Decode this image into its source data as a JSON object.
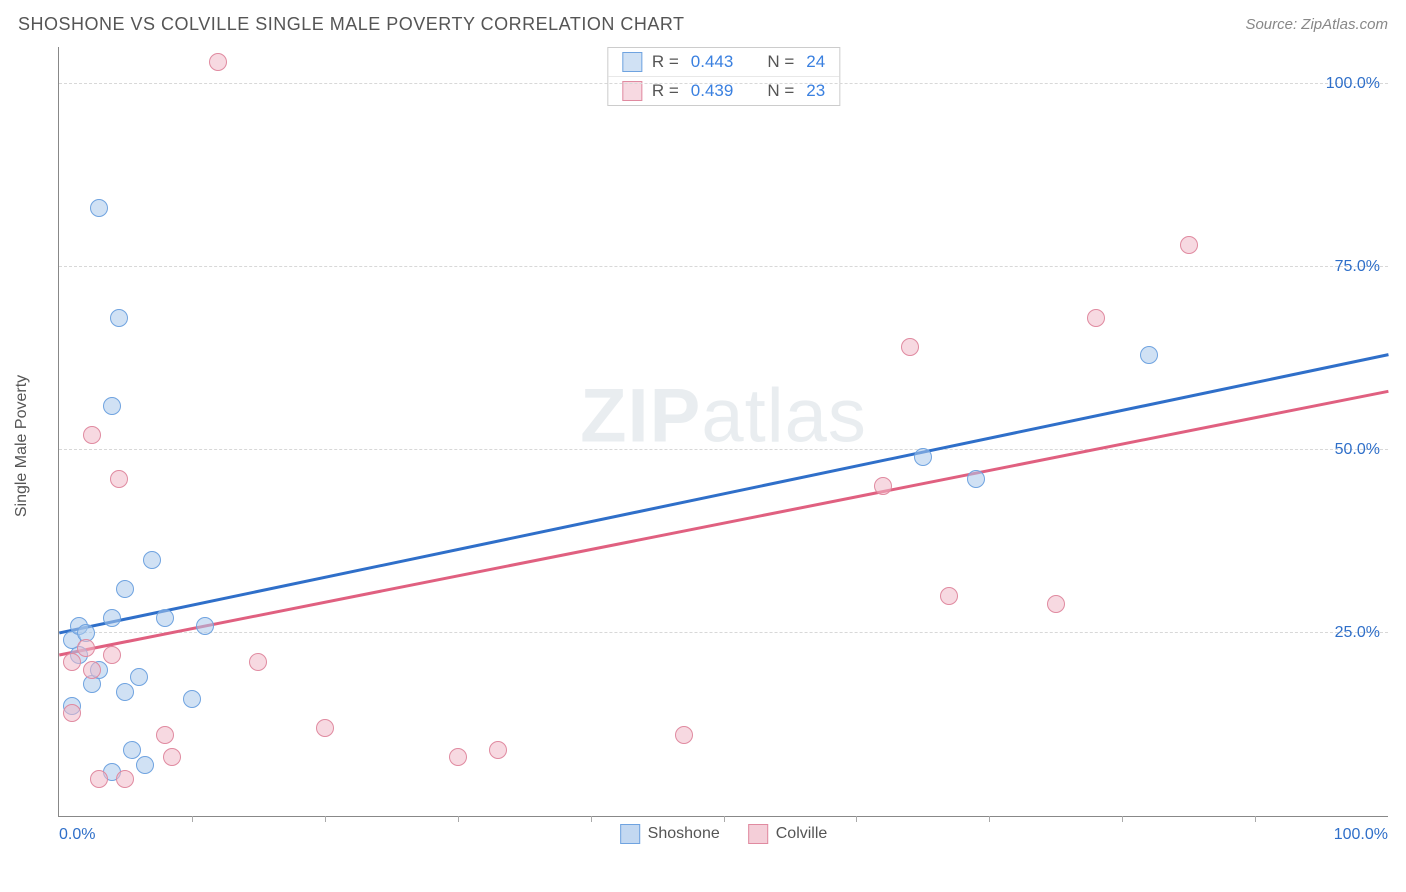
{
  "chart": {
    "type": "scatter",
    "title": "SHOSHONE VS COLVILLE SINGLE MALE POVERTY CORRELATION CHART",
    "source": "Source: ZipAtlas.com",
    "y_axis_label": "Single Male Poverty",
    "x_axis_label_min": "0.0%",
    "x_axis_label_max": "100.0%",
    "watermark_bold": "ZIP",
    "watermark_rest": "atlas",
    "xlim": [
      0,
      100
    ],
    "ylim": [
      0,
      105
    ],
    "y_ticks": [
      {
        "value": 25,
        "label": "25.0%"
      },
      {
        "value": 50,
        "label": "50.0%"
      },
      {
        "value": 75,
        "label": "75.0%"
      },
      {
        "value": 100,
        "label": "100.0%"
      }
    ],
    "x_tick_positions": [
      10,
      20,
      30,
      40,
      50,
      60,
      70,
      80,
      90
    ],
    "background_color": "#ffffff",
    "grid_color": "#d8d8d8",
    "axis_color": "#888888",
    "tick_label_color": "#2f6fc9",
    "title_color": "#555555",
    "title_fontsize": 18,
    "label_fontsize": 16,
    "marker_radius": 9,
    "marker_border_width": 1.5,
    "series": [
      {
        "name": "Shoshone",
        "fill_color": "rgba(170,200,235,0.55)",
        "border_color": "#6fa3e0",
        "R_label": "R =",
        "R_value": "0.443",
        "N_label": "N =",
        "N_value": "24",
        "trend": {
          "x1": 0,
          "y1": 25,
          "x2": 100,
          "y2": 63,
          "color": "#2f6fc9",
          "width": 3
        },
        "points": [
          {
            "x": 1,
            "y": 15
          },
          {
            "x": 1.5,
            "y": 22
          },
          {
            "x": 1,
            "y": 24
          },
          {
            "x": 1.5,
            "y": 26
          },
          {
            "x": 2,
            "y": 25
          },
          {
            "x": 2.5,
            "y": 18
          },
          {
            "x": 3,
            "y": 20
          },
          {
            "x": 4,
            "y": 27
          },
          {
            "x": 3,
            "y": 83
          },
          {
            "x": 4,
            "y": 56
          },
          {
            "x": 4.5,
            "y": 68
          },
          {
            "x": 5,
            "y": 31
          },
          {
            "x": 5,
            "y": 17
          },
          {
            "x": 4,
            "y": 6
          },
          {
            "x": 5.5,
            "y": 9
          },
          {
            "x": 6,
            "y": 19
          },
          {
            "x": 6.5,
            "y": 7
          },
          {
            "x": 7,
            "y": 35
          },
          {
            "x": 8,
            "y": 27
          },
          {
            "x": 10,
            "y": 16
          },
          {
            "x": 11,
            "y": 26
          },
          {
            "x": 65,
            "y": 49
          },
          {
            "x": 69,
            "y": 46
          },
          {
            "x": 82,
            "y": 63
          }
        ]
      },
      {
        "name": "Colville",
        "fill_color": "rgba(240,185,200,0.55)",
        "border_color": "#e08aa0",
        "R_label": "R =",
        "R_value": "0.439",
        "N_label": "N =",
        "N_value": "23",
        "trend": {
          "x1": 0,
          "y1": 22,
          "x2": 100,
          "y2": 58,
          "color": "#e06080",
          "width": 3
        },
        "points": [
          {
            "x": 1,
            "y": 14
          },
          {
            "x": 1,
            "y": 21
          },
          {
            "x": 2,
            "y": 23
          },
          {
            "x": 2.5,
            "y": 20
          },
          {
            "x": 2.5,
            "y": 52
          },
          {
            "x": 3,
            "y": 5
          },
          {
            "x": 4,
            "y": 22
          },
          {
            "x": 4.5,
            "y": 46
          },
          {
            "x": 5,
            "y": 5
          },
          {
            "x": 8,
            "y": 11
          },
          {
            "x": 8.5,
            "y": 8
          },
          {
            "x": 12,
            "y": 103
          },
          {
            "x": 15,
            "y": 21
          },
          {
            "x": 20,
            "y": 12
          },
          {
            "x": 30,
            "y": 8
          },
          {
            "x": 33,
            "y": 9
          },
          {
            "x": 47,
            "y": 11
          },
          {
            "x": 62,
            "y": 45
          },
          {
            "x": 64,
            "y": 64
          },
          {
            "x": 67,
            "y": 30
          },
          {
            "x": 75,
            "y": 29
          },
          {
            "x": 78,
            "y": 68
          },
          {
            "x": 85,
            "y": 78
          }
        ]
      }
    ],
    "bottom_legend": [
      {
        "swatch_fill": "rgba(170,200,235,0.7)",
        "swatch_border": "#6fa3e0",
        "label": "Shoshone"
      },
      {
        "swatch_fill": "rgba(240,185,200,0.7)",
        "swatch_border": "#e08aa0",
        "label": "Colville"
      }
    ]
  }
}
